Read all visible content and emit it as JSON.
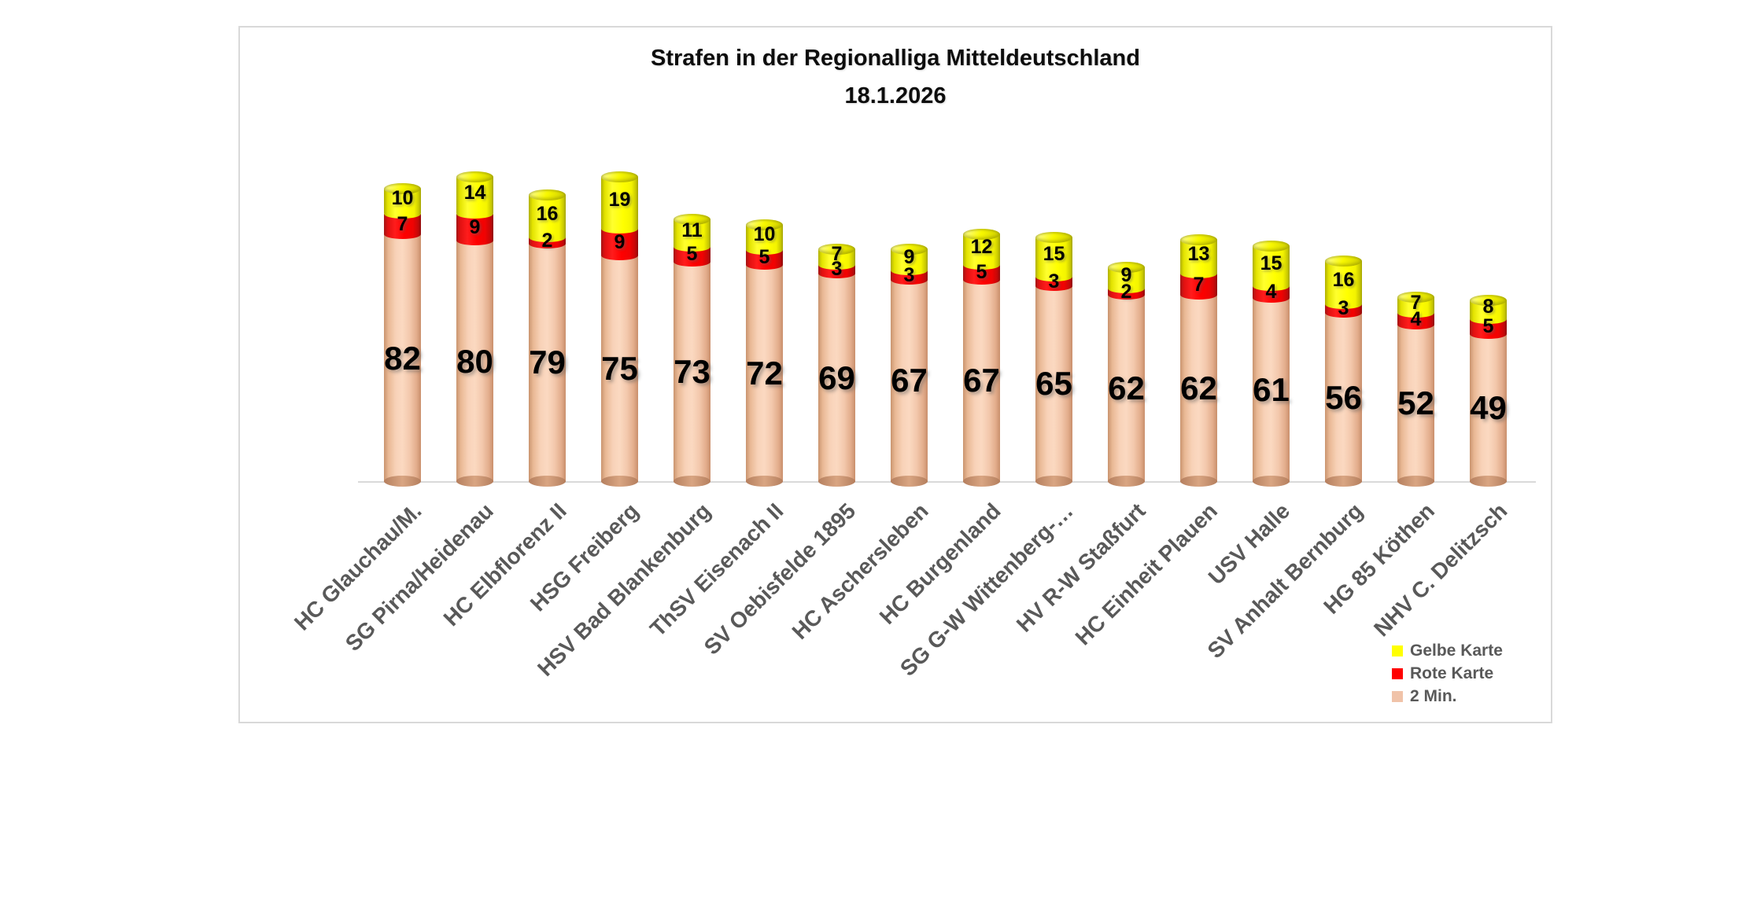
{
  "title": {
    "line1": "Strafen in der Regionalliga Mitteldeutschland",
    "line2": "18.1.2026"
  },
  "legend": {
    "items": [
      {
        "label": "Gelbe Karte",
        "color": "#ffff00"
      },
      {
        "label": "Rote Karte",
        "color": "#ff0000"
      },
      {
        "label": "2 Min.",
        "color": "#f0c3a9"
      }
    ]
  },
  "chart_data": {
    "type": "bar",
    "stacked": true,
    "shape": "cylinder-3d",
    "orientation": "vertical",
    "title": "Strafen in der Regionalliga Mitteldeutschland",
    "subtitle": "18.1.2026",
    "grid": false,
    "y_axis_visible": false,
    "x_axis_line_color": "#d9d9d9",
    "value_labels": "inside-black-bold",
    "legend_position": "inside-bottom-right",
    "category_label_rotation_deg": 45,
    "category_label_color": "#595959",
    "categories": [
      "HC Glauchau/M.",
      "SG Pirna/Heidenau",
      "HC Elbflorenz II",
      "HSG Freiberg",
      "HSV Bad Blankenburg",
      "ThSV Eisenach II",
      "SV Oebisfelde 1895",
      "HC Aschersleben",
      "HC Burgenland",
      "SG G-W Wittenberg-…",
      "HV R-W Staßfurt",
      "HC Einheit Plauen",
      "USV Halle",
      "SV Anhalt Bernburg",
      "HG 85 Köthen",
      "NHV C. Delitzsch"
    ],
    "series": [
      {
        "name": "2 Min.",
        "color": "#f0c3a9",
        "values": [
          82,
          80,
          79,
          75,
          73,
          72,
          69,
          67,
          67,
          65,
          62,
          62,
          61,
          56,
          52,
          49
        ]
      },
      {
        "name": "Rote Karte",
        "color": "#ff0000",
        "values": [
          7,
          9,
          2,
          9,
          5,
          5,
          3,
          3,
          5,
          3,
          2,
          7,
          4,
          3,
          4,
          5
        ]
      },
      {
        "name": "Gelbe Karte",
        "color": "#ffff00",
        "values": [
          10,
          14,
          16,
          19,
          11,
          10,
          7,
          9,
          12,
          15,
          9,
          13,
          15,
          16,
          7,
          8
        ]
      }
    ],
    "totals": [
      99,
      103,
      97,
      103,
      89,
      87,
      79,
      79,
      84,
      83,
      73,
      82,
      80,
      75,
      63,
      62
    ]
  }
}
